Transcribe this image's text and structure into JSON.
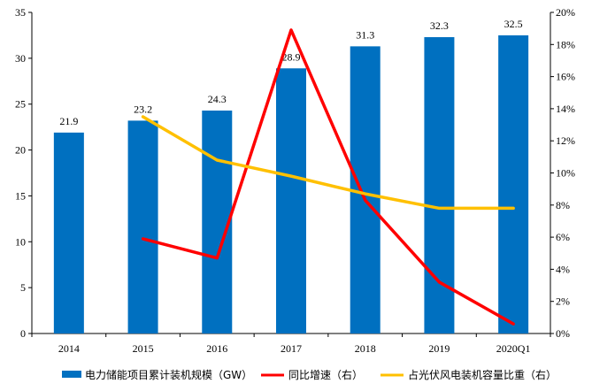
{
  "chart_data": {
    "type": "bar",
    "categories": [
      "2014",
      "2015",
      "2016",
      "2017",
      "2018",
      "2019",
      "2020Q1"
    ],
    "ylim_left": [
      0,
      35
    ],
    "yticks_left": [
      "0",
      "5",
      "10",
      "15",
      "20",
      "25",
      "30",
      "35"
    ],
    "ylim_right": [
      0,
      20
    ],
    "yticks_right": [
      "0%",
      "2%",
      "4%",
      "6%",
      "8%",
      "10%",
      "12%",
      "14%",
      "16%",
      "18%",
      "20%"
    ],
    "series": [
      {
        "name": "电力储能项目累计装机规模（GW）",
        "type": "bar",
        "axis": "left",
        "color": "#0070C0",
        "values": [
          21.9,
          23.2,
          24.3,
          28.9,
          31.3,
          32.3,
          32.5
        ],
        "labels": [
          "21.9",
          "23.2",
          "24.3",
          "28.9",
          "31.3",
          "32.3",
          "32.5"
        ]
      },
      {
        "name": "同比增速（右）",
        "type": "line",
        "axis": "right",
        "color": "#FF0000",
        "values": [
          null,
          5.9,
          4.7,
          18.9,
          8.3,
          3.2,
          0.6
        ]
      },
      {
        "name": "占光伏风电装机容量比重（右）",
        "type": "line",
        "axis": "right",
        "color": "#FFC000",
        "values": [
          null,
          13.5,
          10.8,
          9.8,
          8.7,
          7.8,
          7.8
        ]
      }
    ],
    "legend_position": "bottom",
    "grid": false
  }
}
